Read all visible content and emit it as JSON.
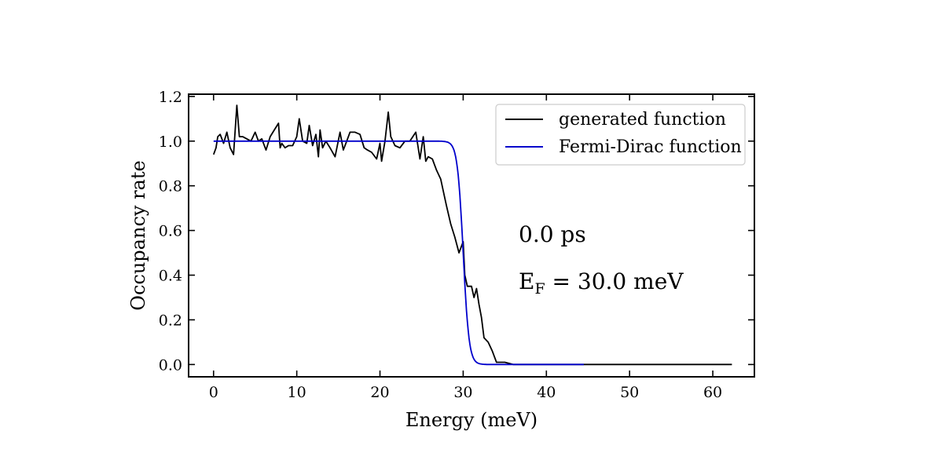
{
  "chart_data": {
    "type": "line",
    "title": "",
    "xlabel": "Energy (meV)",
    "ylabel": "Occupancy rate",
    "xlim": [
      -3,
      65
    ],
    "ylim": [
      -0.055,
      1.21
    ],
    "xticks": [
      "0",
      "10",
      "20",
      "30",
      "40",
      "50",
      "60"
    ],
    "yticks": [
      "0.0",
      "0.2",
      "0.4",
      "0.6",
      "0.8",
      "1.0",
      "1.2"
    ],
    "grid": false,
    "legend_position": "top-right",
    "annotations": {
      "time": "0.0 ps",
      "fermi_prefix": "E",
      "fermi_subscript": "F",
      "fermi_value": " = 30.0 meV"
    },
    "series": [
      {
        "name": "generated function",
        "color": "#000000",
        "x": [
          0.0,
          0.3,
          0.5,
          0.8,
          1.2,
          1.6,
          2.0,
          2.4,
          2.8,
          3.1,
          3.5,
          4.0,
          4.5,
          5.0,
          5.4,
          5.8,
          6.3,
          6.8,
          7.3,
          7.8,
          8.0,
          8.2,
          8.6,
          9.0,
          9.5,
          10.0,
          10.3,
          10.7,
          11.2,
          11.5,
          11.9,
          12.3,
          12.6,
          12.8,
          13.1,
          13.5,
          14.0,
          14.6,
          15.2,
          15.6,
          16.0,
          16.4,
          17.0,
          17.6,
          18.1,
          18.5,
          19.0,
          19.6,
          20.0,
          20.2,
          20.6,
          21.0,
          21.3,
          21.8,
          22.4,
          23.0,
          23.6,
          24.3,
          24.8,
          25.2,
          25.5,
          25.8,
          26.3,
          26.8,
          27.3,
          27.7,
          28.0,
          28.5,
          29.0,
          29.5,
          30.0,
          30.2,
          30.5,
          31.0,
          31.3,
          31.6,
          31.9,
          32.2,
          32.5,
          33.0,
          33.5,
          34.0,
          35.0,
          36.0,
          40.0,
          45.0,
          50.0,
          55.0,
          60.0,
          62.3
        ],
        "y": [
          0.94,
          0.97,
          1.02,
          1.03,
          0.99,
          1.04,
          0.97,
          0.94,
          1.16,
          1.02,
          1.02,
          1.01,
          1.0,
          1.04,
          1.0,
          1.01,
          0.96,
          1.02,
          1.05,
          1.08,
          0.97,
          0.99,
          0.97,
          0.98,
          0.98,
          1.02,
          1.1,
          1.0,
          0.99,
          1.07,
          0.98,
          1.03,
          0.93,
          1.05,
          0.97,
          1.0,
          0.97,
          0.93,
          1.04,
          0.96,
          1.0,
          1.04,
          1.04,
          1.03,
          0.97,
          0.96,
          0.95,
          0.92,
          0.99,
          0.91,
          1.0,
          1.13,
          1.02,
          0.98,
          0.97,
          1.0,
          1.0,
          1.04,
          0.92,
          1.02,
          0.91,
          0.93,
          0.92,
          0.87,
          0.83,
          0.76,
          0.71,
          0.63,
          0.57,
          0.5,
          0.55,
          0.4,
          0.35,
          0.35,
          0.3,
          0.34,
          0.27,
          0.21,
          0.12,
          0.1,
          0.06,
          0.01,
          0.01,
          0.0,
          0.0,
          0.0,
          0.0,
          0.0,
          0.0,
          0.0
        ]
      },
      {
        "name": "Fermi-Dirac function",
        "color": "#0000cc",
        "kT": 0.35,
        "mu": 30.0,
        "x_range": [
          0,
          44.5
        ]
      }
    ]
  }
}
